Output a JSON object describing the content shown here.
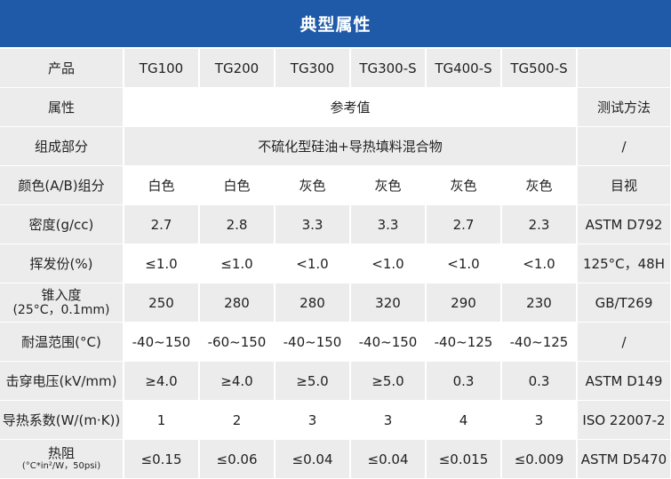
{
  "title": "典型属性",
  "header": {
    "label": "产品",
    "products": [
      "TG100",
      "TG200",
      "TG300",
      "TG300-S",
      "TG400-S",
      "TG500-S"
    ],
    "method": ""
  },
  "property_row": {
    "label": "属性",
    "reference": "参考值",
    "method": "测试方法"
  },
  "composition_row": {
    "label": "组成部分",
    "value": "不硫化型硅油+导热填料混合物",
    "method": "/"
  },
  "rows": [
    {
      "label": "颜色(A/B)组分",
      "values": [
        "白色",
        "白色",
        "灰色",
        "灰色",
        "灰色",
        "灰色"
      ],
      "method": "目视"
    },
    {
      "label": "密度(g/cc)",
      "values": [
        "2.7",
        "2.8",
        "3.3",
        "3.3",
        "2.7",
        "2.3"
      ],
      "method": "ASTM D792"
    },
    {
      "label": "挥发份(%)",
      "values": [
        "≤1.0",
        "≤1.0",
        "<1.0",
        "<1.0",
        "<1.0",
        "<1.0"
      ],
      "method": "125°C，48H"
    },
    {
      "label": "锥入度",
      "label_sub": "(25°C，0.1mm)",
      "values": [
        "250",
        "280",
        "280",
        "320",
        "290",
        "230"
      ],
      "method": "GB/T269"
    },
    {
      "label": "耐温范围(°C)",
      "values": [
        "-40~150",
        "-60~150",
        "-40~150",
        "-40~150",
        "-40~125",
        "-40~125"
      ],
      "method": "/"
    },
    {
      "label": "击穿电压(kV/mm)",
      "values": [
        "≥4.0",
        "≥4.0",
        "≥5.0",
        "≥5.0",
        "0.3",
        "0.3"
      ],
      "method": "ASTM D149"
    },
    {
      "label": "导热系数(W/(m·K))",
      "values": [
        "1",
        "2",
        "3",
        "3",
        "4",
        "3"
      ],
      "method": "ISO 22007-2"
    },
    {
      "label": "热阻",
      "label_sub": "(°C*in²/W，50psi)",
      "values": [
        "≤0.15",
        "≤0.06",
        "≤0.04",
        "≤0.04",
        "≤0.015",
        "≤0.009"
      ],
      "method": "ASTM D5470"
    }
  ],
  "colors": {
    "title_bg": "#1e5aa8",
    "row_alt": "#ececec"
  }
}
